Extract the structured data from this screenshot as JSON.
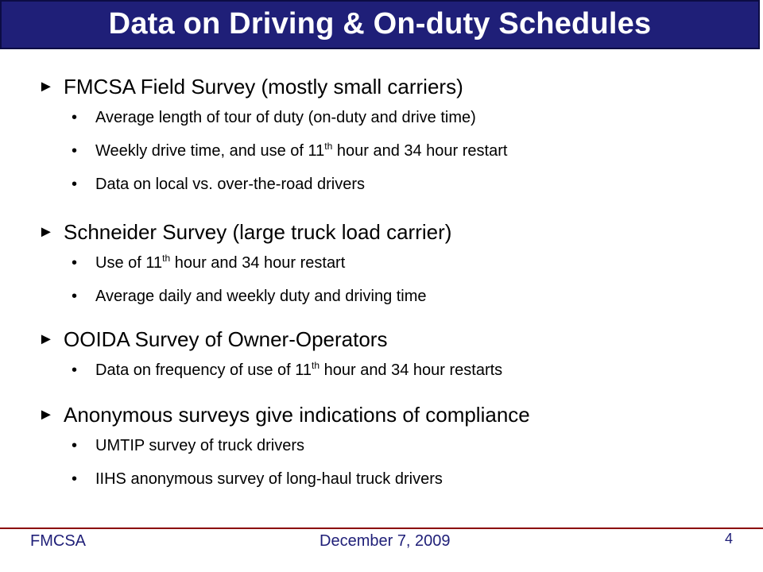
{
  "slide": {
    "title": "Data on Driving & On-duty Schedules",
    "bullet_marker": "►",
    "sub_marker": "•",
    "sections": [
      {
        "heading": "FMCSA Field Survey (mostly small carriers)",
        "items": [
          {
            "pre": "Average length of tour of duty (on-duty and drive time)",
            "sup": "",
            "post": ""
          },
          {
            "pre": "Weekly drive time, and use of 11",
            "sup": "th",
            "post": " hour and 34 hour restart"
          },
          {
            "pre": "Data on local vs. over-the-road drivers",
            "sup": "",
            "post": ""
          }
        ]
      },
      {
        "heading": "Schneider Survey (large truck load carrier)",
        "items": [
          {
            "pre": "Use of 11",
            "sup": "th",
            "post": " hour and 34 hour restart"
          },
          {
            "pre": "Average daily and weekly duty and driving time",
            "sup": "",
            "post": ""
          }
        ]
      },
      {
        "heading": "OOIDA Survey of Owner-Operators",
        "items": [
          {
            "pre": "Data on frequency of use of 11",
            "sup": "th",
            "post": " hour and 34 hour restarts"
          }
        ]
      },
      {
        "heading": "Anonymous surveys give indications of compliance",
        "items": [
          {
            "pre": "UMTIP survey of truck drivers",
            "sup": "",
            "post": ""
          },
          {
            "pre": "IIHS anonymous survey of long-haul truck drivers",
            "sup": "",
            "post": ""
          }
        ]
      }
    ]
  },
  "footer": {
    "org": "FMCSA",
    "date": "December 7, 2009",
    "page": "4"
  },
  "colors": {
    "title_bg": "#1f1f78",
    "footer_text": "#1f1f78",
    "footer_rule": "#8b0000"
  }
}
